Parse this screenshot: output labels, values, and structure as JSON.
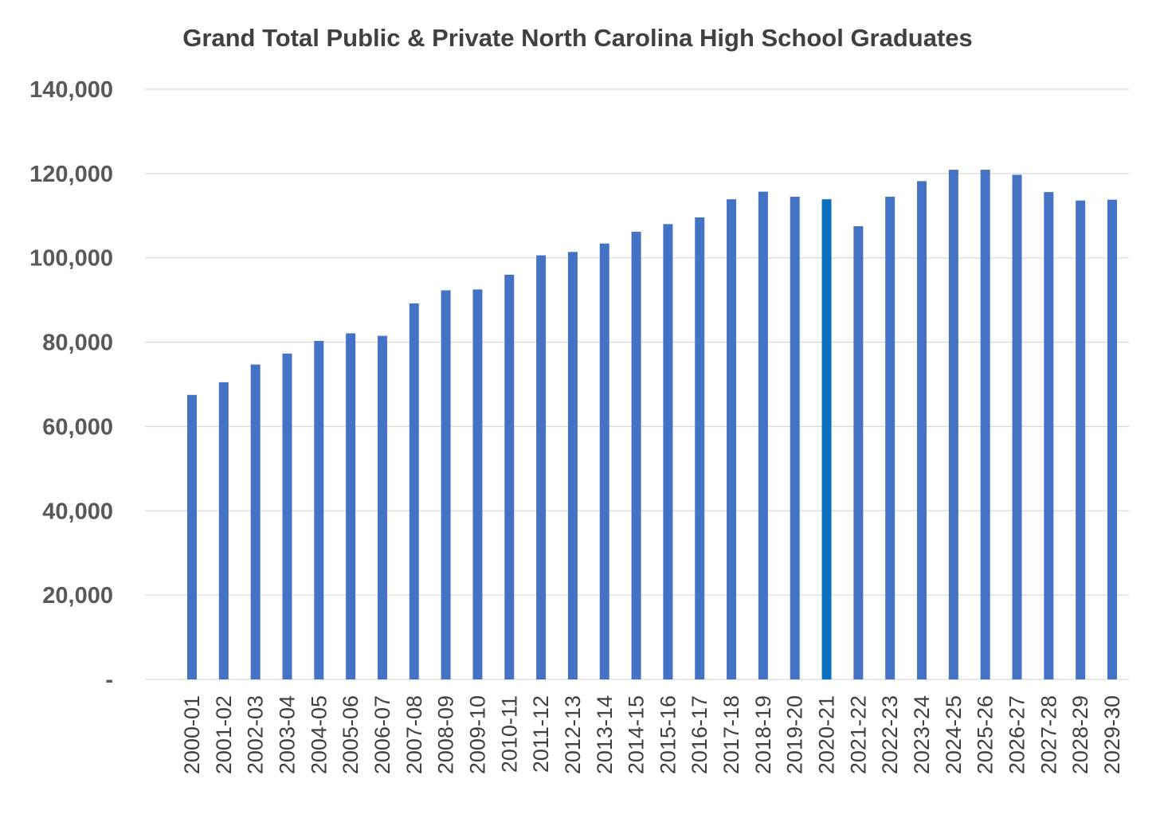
{
  "chart_data": {
    "type": "bar",
    "title": "Grand Total Public & Private North Carolina High School Graduates",
    "xlabel": "",
    "ylabel": "",
    "ylim": [
      0,
      140000
    ],
    "yticks": [
      0,
      20000,
      40000,
      60000,
      80000,
      100000,
      120000,
      140000
    ],
    "ytick_labels": [
      "-",
      "20,000",
      "40,000",
      "60,000",
      "80,000",
      "100,000",
      "120,000",
      "140,000"
    ],
    "grid": true,
    "categories": [
      "2000-01",
      "2001-02",
      "2002-03",
      "2003-04",
      "2004-05",
      "2005-06",
      "2006-07",
      "2007-08",
      "2008-09",
      "2009-10",
      "2010-11",
      "2011-12",
      "2012-13",
      "2013-14",
      "2014-15",
      "2015-16",
      "2016-17",
      "2017-18",
      "2018-19",
      "2019-20",
      "2020-21",
      "2021-22",
      "2022-23",
      "2023-24",
      "2024-25",
      "2025-26",
      "2026-27",
      "2027-28",
      "2028-29",
      "2029-30"
    ],
    "values": [
      67500,
      70500,
      74700,
      77300,
      80300,
      82100,
      81500,
      89200,
      92300,
      92500,
      96000,
      100600,
      101400,
      103400,
      106200,
      108000,
      109600,
      113900,
      115700,
      114500,
      113900,
      107500,
      114500,
      118200,
      120900,
      120900,
      119700,
      115600,
      113600,
      113800
    ],
    "highlight_index": 20,
    "colors": {
      "bar": "#4472C4",
      "highlight": "#0B6FBF",
      "grid": "#D9D9D9",
      "text": "#595959"
    }
  }
}
